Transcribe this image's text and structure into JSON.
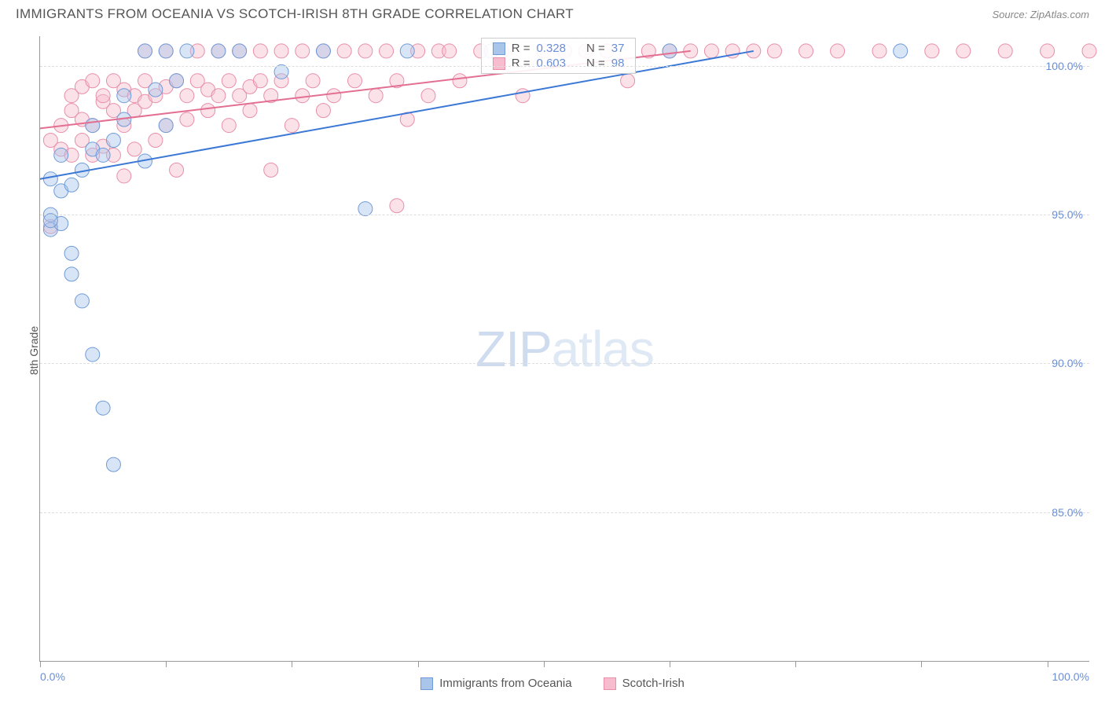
{
  "title": "IMMIGRANTS FROM OCEANIA VS SCOTCH-IRISH 8TH GRADE CORRELATION CHART",
  "source": "Source: ZipAtlas.com",
  "ylabel": "8th Grade",
  "watermark_a": "ZIP",
  "watermark_b": "atlas",
  "chart": {
    "type": "scatter",
    "background_color": "#ffffff",
    "grid_color": "#dddddd",
    "axis_color": "#999999",
    "tick_label_color": "#6b8fd6",
    "xlim": [
      0,
      100
    ],
    "ylim": [
      80,
      101
    ],
    "yticks": [
      85.0,
      90.0,
      95.0,
      100.0
    ],
    "ytick_labels": [
      "85.0%",
      "90.0%",
      "95.0%",
      "100.0%"
    ],
    "xticks": [
      0,
      12,
      24,
      36,
      48,
      60,
      72,
      84,
      96
    ],
    "xtick_labels_visible": {
      "0": "0.0%",
      "100": "100.0%"
    },
    "series": [
      {
        "name": "Immigrants from Oceania",
        "color_fill": "#a9c5ea",
        "color_stroke": "#6f9bd8",
        "marker_radius": 9,
        "fill_opacity": 0.45,
        "reg_line": {
          "x1": 0,
          "y1": 96.2,
          "x2": 68,
          "y2": 100.5,
          "color": "#3b78d6",
          "width": 2
        },
        "R": "0.328",
        "N": "37",
        "points": [
          [
            1,
            94.5
          ],
          [
            1,
            95.0
          ],
          [
            1,
            96.2
          ],
          [
            2,
            95.8
          ],
          [
            2,
            94.7
          ],
          [
            2,
            97.0
          ],
          [
            3,
            96.0
          ],
          [
            3,
            93.7
          ],
          [
            3,
            93.0
          ],
          [
            4,
            92.1
          ],
          [
            4,
            96.5
          ],
          [
            5,
            90.3
          ],
          [
            5,
            97.2
          ],
          [
            5,
            98.0
          ],
          [
            6,
            88.5
          ],
          [
            6,
            97.0
          ],
          [
            7,
            86.6
          ],
          [
            7,
            97.5
          ],
          [
            8,
            99.0
          ],
          [
            8,
            98.2
          ],
          [
            10,
            100.5
          ],
          [
            10,
            96.8
          ],
          [
            11,
            99.2
          ],
          [
            12,
            100.5
          ],
          [
            12,
            98.0
          ],
          [
            13,
            99.5
          ],
          [
            14,
            100.5
          ],
          [
            17,
            100.5
          ],
          [
            19,
            100.5
          ],
          [
            23,
            99.8
          ],
          [
            27,
            100.5
          ],
          [
            31,
            95.2
          ],
          [
            35,
            100.5
          ],
          [
            43,
            100.5
          ],
          [
            60,
            100.5
          ],
          [
            82,
            100.5
          ],
          [
            1,
            94.8
          ]
        ]
      },
      {
        "name": "Scotch-Irish",
        "color_fill": "#f7bccd",
        "color_stroke": "#e88fa9",
        "marker_radius": 9,
        "fill_opacity": 0.45,
        "reg_line": {
          "x1": 0,
          "y1": 97.9,
          "x2": 62,
          "y2": 100.5,
          "color": "#e36f92",
          "width": 2
        },
        "R": "0.603",
        "N": "98",
        "points": [
          [
            1,
            97.5
          ],
          [
            1,
            94.6
          ],
          [
            2,
            98.0
          ],
          [
            2,
            97.2
          ],
          [
            3,
            98.5
          ],
          [
            3,
            97.0
          ],
          [
            3,
            99.0
          ],
          [
            4,
            98.2
          ],
          [
            4,
            97.5
          ],
          [
            4,
            99.3
          ],
          [
            5,
            98.0
          ],
          [
            5,
            97.0
          ],
          [
            5,
            99.5
          ],
          [
            6,
            98.8
          ],
          [
            6,
            97.3
          ],
          [
            6,
            99.0
          ],
          [
            7,
            98.5
          ],
          [
            7,
            99.5
          ],
          [
            7,
            97.0
          ],
          [
            8,
            98.0
          ],
          [
            8,
            99.2
          ],
          [
            8,
            96.3
          ],
          [
            9,
            98.5
          ],
          [
            9,
            99.0
          ],
          [
            9,
            97.2
          ],
          [
            10,
            98.8
          ],
          [
            10,
            99.5
          ],
          [
            10,
            100.5
          ],
          [
            11,
            99.0
          ],
          [
            11,
            97.5
          ],
          [
            12,
            99.3
          ],
          [
            12,
            98.0
          ],
          [
            12,
            100.5
          ],
          [
            13,
            99.5
          ],
          [
            13,
            96.5
          ],
          [
            14,
            99.0
          ],
          [
            14,
            98.2
          ],
          [
            15,
            99.5
          ],
          [
            15,
            100.5
          ],
          [
            16,
            98.5
          ],
          [
            16,
            99.2
          ],
          [
            17,
            99.0
          ],
          [
            17,
            100.5
          ],
          [
            18,
            98.0
          ],
          [
            18,
            99.5
          ],
          [
            19,
            99.0
          ],
          [
            19,
            100.5
          ],
          [
            20,
            98.5
          ],
          [
            20,
            99.3
          ],
          [
            21,
            99.5
          ],
          [
            21,
            100.5
          ],
          [
            22,
            96.5
          ],
          [
            22,
            99.0
          ],
          [
            23,
            99.5
          ],
          [
            23,
            100.5
          ],
          [
            24,
            98.0
          ],
          [
            25,
            99.0
          ],
          [
            25,
            100.5
          ],
          [
            26,
            99.5
          ],
          [
            27,
            98.5
          ],
          [
            27,
            100.5
          ],
          [
            28,
            99.0
          ],
          [
            29,
            100.5
          ],
          [
            30,
            99.5
          ],
          [
            31,
            100.5
          ],
          [
            32,
            99.0
          ],
          [
            33,
            100.5
          ],
          [
            34,
            95.3
          ],
          [
            34,
            99.5
          ],
          [
            35,
            98.2
          ],
          [
            36,
            100.5
          ],
          [
            37,
            99.0
          ],
          [
            38,
            100.5
          ],
          [
            39,
            100.5
          ],
          [
            40,
            99.5
          ],
          [
            42,
            100.5
          ],
          [
            44,
            100.5
          ],
          [
            46,
            99.0
          ],
          [
            48,
            100.5
          ],
          [
            50,
            100.5
          ],
          [
            52,
            100.5
          ],
          [
            54,
            100.5
          ],
          [
            56,
            99.5
          ],
          [
            58,
            100.5
          ],
          [
            60,
            100.5
          ],
          [
            62,
            100.5
          ],
          [
            64,
            100.5
          ],
          [
            66,
            100.5
          ],
          [
            70,
            100.5
          ],
          [
            73,
            100.5
          ],
          [
            76,
            100.5
          ],
          [
            80,
            100.5
          ],
          [
            85,
            100.5
          ],
          [
            88,
            100.5
          ],
          [
            92,
            100.5
          ],
          [
            96,
            100.5
          ],
          [
            100,
            100.5
          ],
          [
            68,
            100.5
          ]
        ]
      }
    ],
    "legend_top": {
      "rows": [
        {
          "swatch_fill": "#a9c5ea",
          "swatch_stroke": "#6f9bd8",
          "r_label": "R =",
          "r_val": "0.328",
          "n_label": "N =",
          "n_val": "37"
        },
        {
          "swatch_fill": "#f7bccd",
          "swatch_stroke": "#e88fa9",
          "r_label": "R =",
          "r_val": "0.603",
          "n_label": "N =",
          "n_val": "98"
        }
      ]
    },
    "legend_bottom": [
      {
        "swatch_fill": "#a9c5ea",
        "swatch_stroke": "#6f9bd8",
        "label": "Immigrants from Oceania"
      },
      {
        "swatch_fill": "#f7bccd",
        "swatch_stroke": "#e88fa9",
        "label": "Scotch-Irish"
      }
    ]
  }
}
